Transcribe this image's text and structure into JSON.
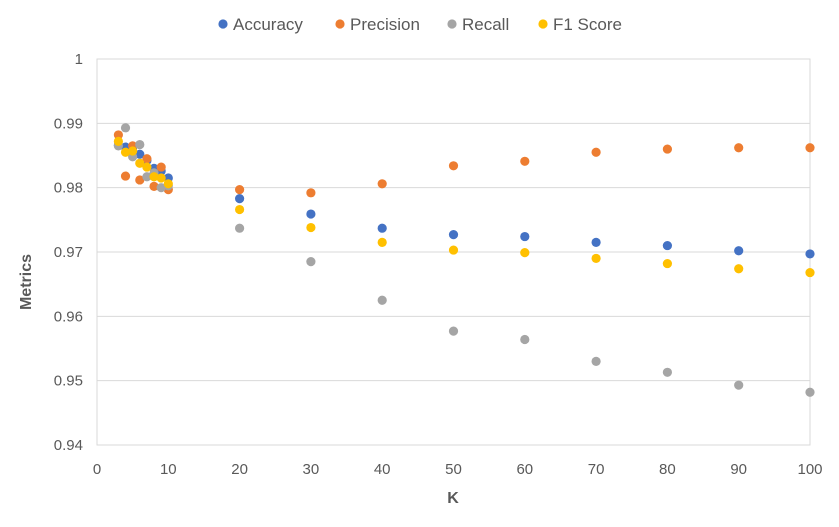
{
  "chart_data": {
    "type": "scatter",
    "xlabel": "K",
    "ylabel": "Metrics",
    "xlim": [
      0,
      100
    ],
    "ylim": [
      0.94,
      1
    ],
    "xticks": [
      0,
      10,
      20,
      30,
      40,
      50,
      60,
      70,
      80,
      90,
      100
    ],
    "yticks": [
      0.94,
      0.95,
      0.96,
      0.97,
      0.98,
      0.99,
      1
    ],
    "ytick_labels": [
      "0.94",
      "0.95",
      "0.96",
      "0.97",
      "0.98",
      "0.99",
      "1"
    ],
    "grid": "horizontal",
    "legend_position": "top",
    "x": [
      3,
      4,
      5,
      6,
      7,
      8,
      9,
      10,
      20,
      30,
      40,
      50,
      60,
      70,
      80,
      90,
      100
    ],
    "series": [
      {
        "name": "Accuracy",
        "color": "#4472C4",
        "values": [
          0.9866,
          0.9863,
          0.9862,
          0.9852,
          0.9842,
          0.983,
          0.9826,
          0.9815,
          0.9783,
          0.9759,
          0.9737,
          0.9727,
          0.9724,
          0.9715,
          0.971,
          0.9702,
          0.9697
        ]
      },
      {
        "name": "Precision",
        "color": "#ED7D31",
        "values": [
          0.9882,
          0.9818,
          0.9865,
          0.9812,
          0.9845,
          0.9802,
          0.9832,
          0.9797,
          0.9797,
          0.9792,
          0.9806,
          0.9834,
          0.9841,
          0.9855,
          0.986,
          0.9862,
          0.9862
        ]
      },
      {
        "name": "Recall",
        "color": "#A5A5A5",
        "values": [
          0.9865,
          0.9893,
          0.9848,
          0.9867,
          0.9817,
          0.9823,
          0.98,
          0.9803,
          0.9737,
          0.9685,
          0.9625,
          0.9577,
          0.9564,
          0.953,
          0.9513,
          0.9493,
          0.9482
        ]
      },
      {
        "name": "F1 Score",
        "color": "#FFC000",
        "values": [
          0.9872,
          0.9855,
          0.9857,
          0.9838,
          0.9832,
          0.9817,
          0.9815,
          0.9806,
          0.9766,
          0.9738,
          0.9715,
          0.9703,
          0.9699,
          0.969,
          0.9682,
          0.9674,
          0.9668
        ]
      }
    ]
  }
}
